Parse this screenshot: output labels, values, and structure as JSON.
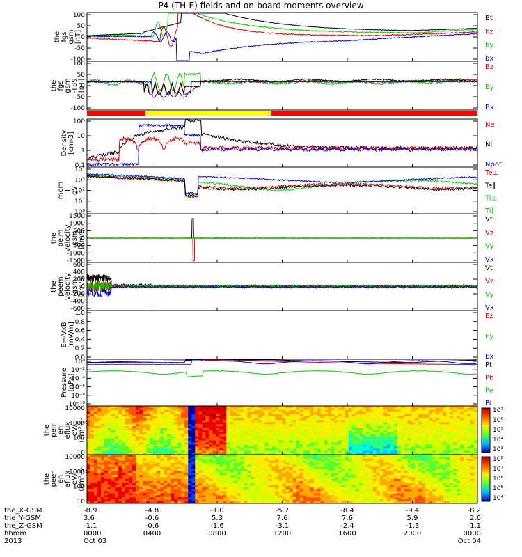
{
  "title": "P4 (TH-E) fields and on-board moments overview",
  "colors": {
    "black": "#000000",
    "red": "#dd0000",
    "green": "#00cc00",
    "blue": "#0000dd",
    "yellow": "#ffff00",
    "bar_red": "#ff0000"
  },
  "chart_data": {
    "type": "line",
    "x_range": [
      "2013-10-03 00:00",
      "2013-10-04 00:00"
    ],
    "panels": [
      {
        "ylabel": [
          "the",
          "fgs",
          "gsm",
          "[nT]"
        ],
        "ticks": [
          "100",
          "50",
          "0",
          "-50",
          "-100"
        ],
        "ymin": -100,
        "ymax": 100,
        "series": [
          {
            "name": "Bt",
            "color": "#000000"
          },
          {
            "name": "bz",
            "color": "#dd0000"
          },
          {
            "name": "by",
            "color": "#00cc00"
          },
          {
            "name": "bx",
            "color": "#0000dd"
          }
        ]
      },
      {
        "ylabel": [
          "the",
          "fgs",
          "gsm",
          "-T89",
          "[nT]"
        ],
        "ticks": [
          "100",
          "50",
          "0",
          "-50",
          "-100"
        ],
        "ymin": -130,
        "ymax": 100,
        "series": [
          {
            "name": "Bz",
            "color": "#dd0000"
          },
          {
            "name": "By",
            "color": "#00cc00"
          },
          {
            "name": "Bx",
            "color": "#0000dd"
          }
        ]
      },
      {
        "ylabel": [
          "Density",
          "[cm-3]"
        ],
        "ticks": [
          "100",
          "10",
          "1",
          "0.1"
        ],
        "log": true,
        "series": [
          {
            "name": "Ne",
            "color": "#dd0000"
          },
          {
            "name": "Ni",
            "color": "#000000"
          },
          {
            "name": "Npot",
            "color": "#0000dd"
          }
        ]
      },
      {
        "ylabel": [
          "mom",
          "T",
          "eV"
        ],
        "ticks": [
          "10⁴",
          "10³",
          "10²",
          "10¹",
          "10⁰"
        ],
        "log": true,
        "series": [
          {
            "name": "Te⊥",
            "color": "#dd0000"
          },
          {
            "name": "Te∥",
            "color": "#000000"
          },
          {
            "name": "Ti⊥",
            "color": "#00cc00"
          },
          {
            "name": "Ti∥",
            "color": "#00cc00"
          }
        ]
      },
      {
        "ylabel": [
          "the",
          "peim",
          "velocity",
          "gsm",
          "[km/s]"
        ],
        "ticks": [
          "1500",
          "1000",
          "500",
          "0",
          "-500",
          "-1000",
          "-1500"
        ],
        "ymin": -1500,
        "ymax": 1500,
        "series": [
          {
            "name": "Vt",
            "color": "#000000"
          },
          {
            "name": "Vz",
            "color": "#dd0000"
          },
          {
            "name": "Vy",
            "color": "#00cc00"
          },
          {
            "name": "Vx",
            "color": "#0000dd"
          }
        ]
      },
      {
        "ylabel": [
          "the",
          "peem",
          "velocity",
          "gsm",
          "[km/s]"
        ],
        "ticks": [
          "600",
          "400",
          "200",
          "0",
          "-200",
          "-400",
          "-600"
        ],
        "ymin": -600,
        "ymax": 600,
        "series": [
          {
            "name": "Vt",
            "color": "#000000"
          },
          {
            "name": "Vz",
            "color": "#dd0000"
          },
          {
            "name": "Vy",
            "color": "#00cc00"
          },
          {
            "name": "Vx",
            "color": "#0000dd"
          }
        ]
      },
      {
        "ylabel": [
          "E=-VxB",
          "[mV/m]"
        ],
        "ticks": [
          "1.0",
          "0.8",
          "0.6",
          "0.4",
          "0.2",
          "0.0"
        ],
        "ymin": 0,
        "ymax": 1,
        "series": [
          {
            "name": "Ez",
            "color": "#dd0000"
          },
          {
            "name": "Ey",
            "color": "#00cc00"
          },
          {
            "name": "Ex",
            "color": "#0000dd"
          }
        ]
      },
      {
        "ylabel": [
          "Pressure",
          "[nPa]"
        ],
        "ticks": [
          "10⁰",
          "10⁻²",
          "10⁻⁴",
          "10⁻⁶",
          "10⁻⁸",
          "10⁻¹⁰"
        ],
        "log": true,
        "series": [
          {
            "name": "Pt",
            "color": "#000000"
          },
          {
            "name": "Pb",
            "color": "#dd0000"
          },
          {
            "name": "Pe",
            "color": "#00cc00"
          },
          {
            "name": "Pi",
            "color": "#0000dd"
          }
        ]
      },
      {
        "ylabel": [
          "the",
          "peir",
          "en",
          "eflux",
          "eV/",
          "(cm²-s-",
          "sr-eV)"
        ],
        "ticks": [
          "10000",
          "1000",
          "100",
          "10"
        ],
        "type": "spectrogram",
        "colorbar": [
          "10⁷",
          "10⁶",
          "10⁵",
          "10⁴",
          "10³"
        ]
      },
      {
        "ylabel": [
          "the",
          "peer",
          "en",
          "eflux",
          "eV/",
          "(cm²-s-",
          "sr-eV)"
        ],
        "ticks": [
          "10000",
          "1000",
          "100",
          "10"
        ],
        "type": "spectrogram",
        "colorbar": [
          "10⁸",
          "10⁷",
          "10⁶",
          "10⁵",
          "10⁴"
        ]
      }
    ],
    "xaxis": {
      "rows": [
        {
          "label": "the_X-GSM",
          "values": [
            "-8.9",
            "-4.8",
            "-1.0",
            "-5.7",
            "-8.4",
            "-9.4",
            "-8.2"
          ]
        },
        {
          "label": "the_Y-GSM",
          "values": [
            "3.6",
            "-0.6",
            "5.3",
            "7.6",
            "7.6",
            "5.9",
            "2.6"
          ]
        },
        {
          "label": "the_Z-GSM",
          "values": [
            "-1.1",
            "-0.6",
            "-1.6",
            "-3.1",
            "-2.4",
            "-1.3",
            "-1.1"
          ]
        },
        {
          "label": "hhmm",
          "values": [
            "0000",
            "0400",
            "0800",
            "1200",
            "1600",
            "2000",
            "0000"
          ]
        },
        {
          "label": "2013",
          "values": [
            "Oct 03",
            "",
            "",
            "",
            "",
            "",
            "Oct 04"
          ]
        }
      ],
      "hour_ticks": [
        0,
        4,
        8,
        12,
        16,
        20,
        24
      ]
    },
    "mode_bar": {
      "segments": [
        {
          "from": 0,
          "to": 3.6,
          "color": "red"
        },
        {
          "from": 3.6,
          "to": 11.3,
          "color": "yellow"
        },
        {
          "from": 11.3,
          "to": 24,
          "color": "red"
        }
      ]
    }
  }
}
